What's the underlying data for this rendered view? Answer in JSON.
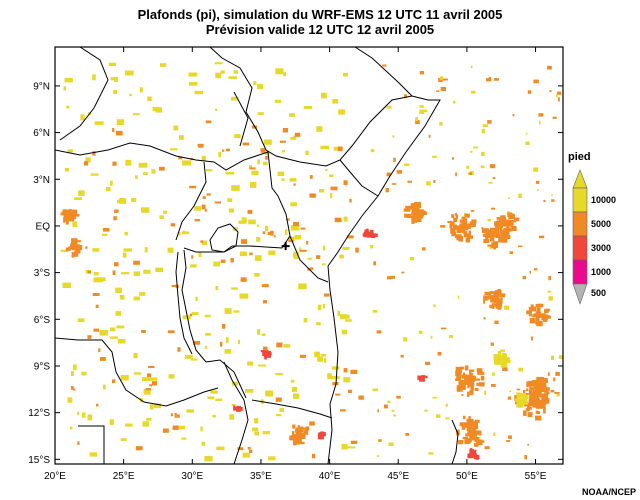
{
  "title_line1": "Plafonds (pi), simulation du WRF-EMS 12 UTC 11 avril 2005",
  "title_line2": "Prévision valide 12 UTC 12 avril 2005",
  "credit": "NOAA/NCEP",
  "map": {
    "lon_range": [
      20,
      57
    ],
    "lat_range": [
      -15.3,
      11.5
    ],
    "lat_ticks": [
      {
        "value": 9,
        "label": "9°N"
      },
      {
        "value": 6,
        "label": "6°N"
      },
      {
        "value": 3,
        "label": "3°N"
      },
      {
        "value": 0,
        "label": "EQ"
      },
      {
        "value": -3,
        "label": "3°S"
      },
      {
        "value": -6,
        "label": "6°S"
      },
      {
        "value": -9,
        "label": "9°S"
      },
      {
        "value": -12,
        "label": "12°S"
      },
      {
        "value": -15,
        "label": "15°S"
      }
    ],
    "lon_ticks": [
      {
        "value": 20,
        "label": "20°E"
      },
      {
        "value": 25,
        "label": "25°E"
      },
      {
        "value": 30,
        "label": "30°E"
      },
      {
        "value": 35,
        "label": "35°E"
      },
      {
        "value": 40,
        "label": "40°E"
      },
      {
        "value": 45,
        "label": "45°E"
      },
      {
        "value": 50,
        "label": "50°E"
      },
      {
        "value": 55,
        "label": "55°E"
      }
    ],
    "marker": {
      "lon": 36.8,
      "lat": -1.3
    }
  },
  "legend": {
    "title": "pied",
    "levels": [
      {
        "label": "10000",
        "color": "#e6d92a"
      },
      {
        "label": "5000",
        "color": "#f08a24"
      },
      {
        "label": "3000",
        "color": "#f0463c"
      },
      {
        "label": "1000",
        "color": "#ec0a8c"
      },
      {
        "label": "500",
        "color": "#b4b4b4"
      }
    ]
  }
}
